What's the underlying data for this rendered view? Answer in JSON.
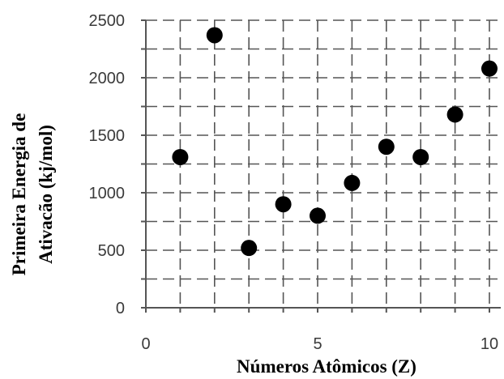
{
  "chart_data": {
    "type": "scatter",
    "title": "",
    "xlabel": "Números Atômicos (Z)",
    "ylabel_lines": [
      "Primeira Energia de",
      "Ativacão (kj/mol)"
    ],
    "xlim": [
      0,
      10
    ],
    "ylim": [
      0,
      2500
    ],
    "xticks": [
      0,
      5,
      10
    ],
    "xtick_labels": [
      "0",
      "5",
      "10"
    ],
    "yticks": [
      0,
      500,
      1000,
      1500,
      2000,
      2500
    ],
    "ytick_labels": [
      "0",
      "500",
      "1000",
      "1500",
      "2000",
      "2500"
    ],
    "grid": true,
    "legend": "none",
    "series": [
      {
        "x": [
          1,
          2,
          3,
          4,
          5,
          6,
          7,
          8,
          9,
          10
        ],
        "y": [
          1310,
          2370,
          520,
          900,
          800,
          1085,
          1400,
          1310,
          1680,
          2080
        ]
      }
    ],
    "point_color": "#000000"
  }
}
